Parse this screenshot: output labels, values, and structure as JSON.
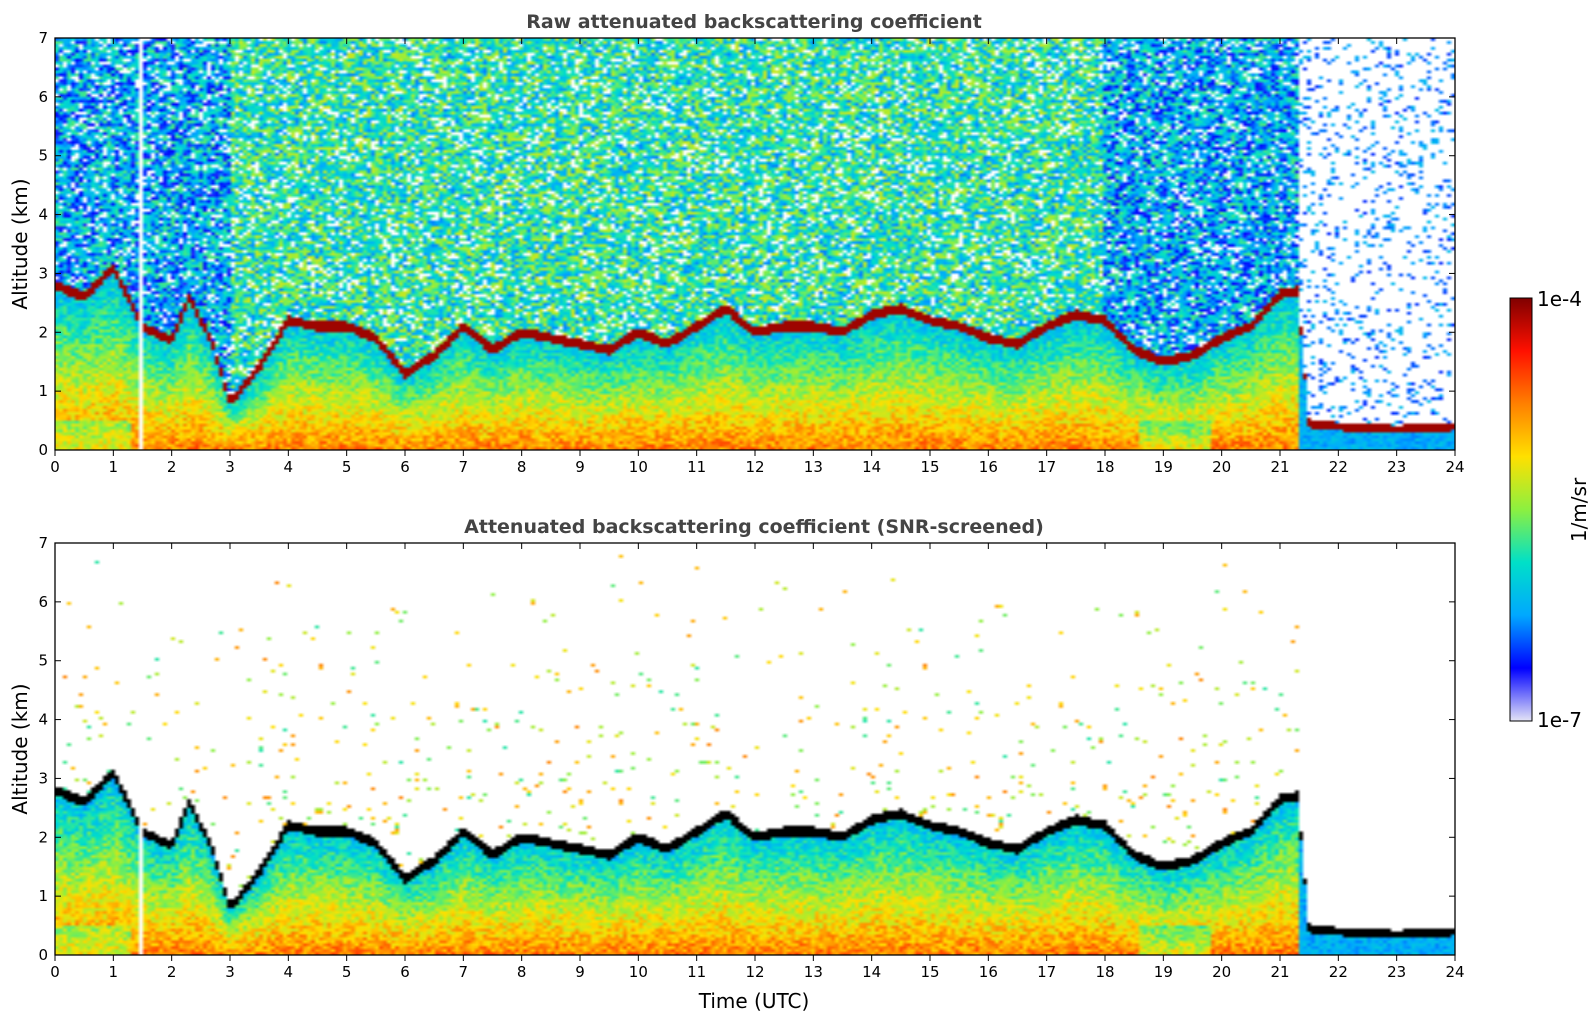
{
  "chart_data": [
    {
      "type": "heatmap",
      "title": "Raw attenuated backscattering coefficient",
      "xlabel": "",
      "ylabel": "Altitude (km)",
      "xlim": [
        0,
        24
      ],
      "ylim": [
        0,
        7
      ],
      "x_ticks": [
        "0",
        "1",
        "2",
        "3",
        "4",
        "5",
        "6",
        "7",
        "8",
        "9",
        "10",
        "11",
        "12",
        "13",
        "14",
        "15",
        "16",
        "17",
        "18",
        "19",
        "20",
        "21",
        "22",
        "23",
        "24"
      ],
      "y_ticks": [
        "0",
        "1",
        "2",
        "3",
        "4",
        "5",
        "6",
        "7"
      ],
      "screened": false,
      "layer_top_km": [
        [
          0.0,
          2.8
        ],
        [
          0.5,
          2.6
        ],
        [
          1.0,
          3.1
        ],
        [
          1.5,
          2.1
        ],
        [
          2.0,
          1.85
        ],
        [
          2.3,
          2.6
        ],
        [
          2.7,
          1.8
        ],
        [
          3.0,
          0.8
        ],
        [
          3.5,
          1.4
        ],
        [
          4.0,
          2.2
        ],
        [
          4.5,
          2.1
        ],
        [
          5.0,
          2.1
        ],
        [
          5.5,
          1.9
        ],
        [
          6.0,
          1.3
        ],
        [
          6.5,
          1.6
        ],
        [
          7.0,
          2.1
        ],
        [
          7.5,
          1.7
        ],
        [
          8.0,
          2.0
        ],
        [
          8.5,
          1.9
        ],
        [
          9.0,
          1.8
        ],
        [
          9.5,
          1.7
        ],
        [
          10.0,
          2.0
        ],
        [
          10.5,
          1.8
        ],
        [
          11.0,
          2.1
        ],
        [
          11.5,
          2.4
        ],
        [
          12.0,
          2.0
        ],
        [
          12.5,
          2.1
        ],
        [
          13.0,
          2.1
        ],
        [
          13.5,
          2.0
        ],
        [
          14.0,
          2.3
        ],
        [
          14.5,
          2.4
        ],
        [
          15.0,
          2.2
        ],
        [
          15.5,
          2.1
        ],
        [
          16.0,
          1.9
        ],
        [
          16.5,
          1.8
        ],
        [
          17.0,
          2.1
        ],
        [
          17.5,
          2.3
        ],
        [
          18.0,
          2.2
        ],
        [
          18.5,
          1.7
        ],
        [
          19.0,
          1.5
        ],
        [
          19.5,
          1.6
        ],
        [
          20.0,
          1.9
        ],
        [
          20.5,
          2.1
        ],
        [
          21.0,
          2.65
        ],
        [
          21.3,
          2.7
        ],
        [
          21.5,
          0.45
        ],
        [
          22.0,
          0.4
        ],
        [
          23.0,
          0.35
        ],
        [
          24.0,
          0.4
        ]
      ]
    },
    {
      "type": "heatmap",
      "title": "Attenuated backscattering coefficient (SNR-screened)",
      "xlabel": "Time (UTC)",
      "ylabel": "Altitude (km)",
      "xlim": [
        0,
        24
      ],
      "ylim": [
        0,
        7
      ],
      "x_ticks": [
        "0",
        "1",
        "2",
        "3",
        "4",
        "5",
        "6",
        "7",
        "8",
        "9",
        "10",
        "11",
        "12",
        "13",
        "14",
        "15",
        "16",
        "17",
        "18",
        "19",
        "20",
        "21",
        "22",
        "23",
        "24"
      ],
      "y_ticks": [
        "0",
        "1",
        "2",
        "3",
        "4",
        "5",
        "6",
        "7"
      ],
      "screened": true
    }
  ],
  "colorbar": {
    "label": "1/m/sr",
    "max_label": "1e-4",
    "min_label": "1e-7",
    "scale": "log",
    "range": [
      1e-07,
      0.0001
    ],
    "colormap": [
      "#e4e4f6",
      "#0000ff",
      "#00a8ff",
      "#00e0c8",
      "#8cf040",
      "#ffe000",
      "#ff8000",
      "#ff1000",
      "#800000"
    ]
  }
}
